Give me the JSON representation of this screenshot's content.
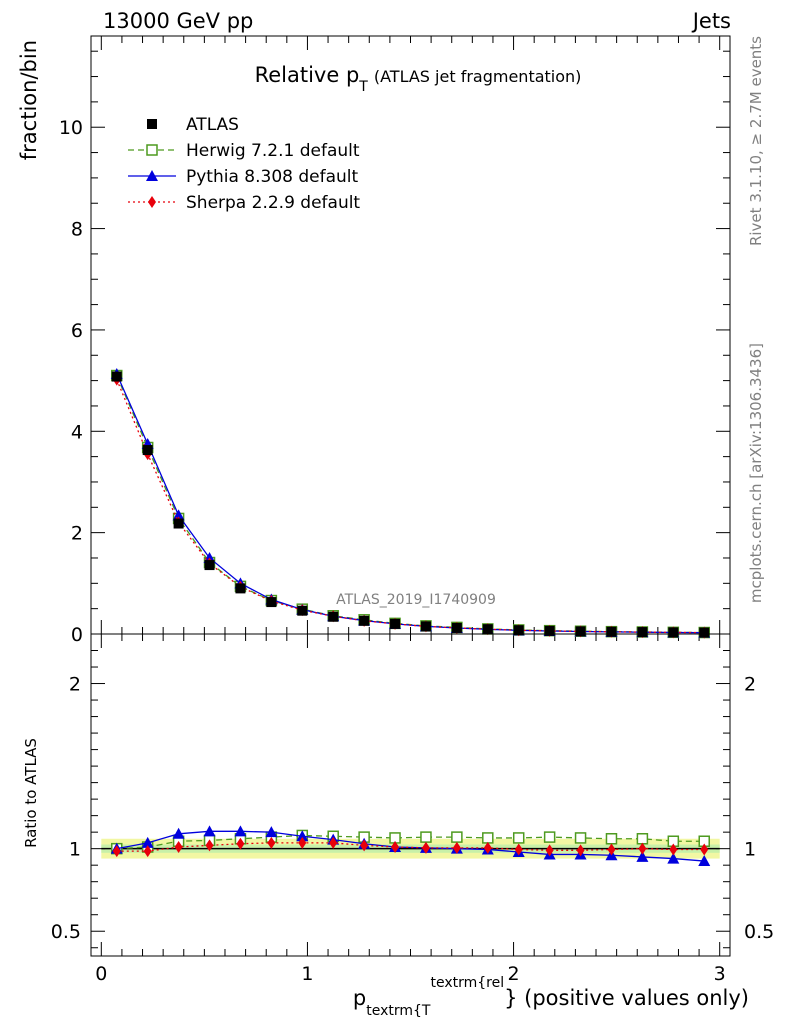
{
  "header": {
    "energy_label": "13000 GeV pp",
    "category_label": "Jets"
  },
  "side_labels": {
    "rivet": "Rivet 3.1.10, ≥ 2.7M events",
    "mcplots": "mcplots.cern.ch [arXiv:1306.3436]"
  },
  "watermark": "ATLAS_2019_I1740909",
  "chart_data": [
    {
      "type": "line",
      "title_main": "Relative p",
      "title_sub": "T",
      "title_note": "(ATLAS jet fragmentation)",
      "ylabel": "fraction/bin",
      "xlim": [
        -0.05,
        3.05
      ],
      "ylim": [
        0,
        11.8
      ],
      "yticks": [
        0,
        2,
        4,
        6,
        8,
        10
      ],
      "yticks_minor_step": 0.5,
      "x": [
        0.075,
        0.225,
        0.375,
        0.525,
        0.675,
        0.825,
        0.975,
        1.125,
        1.275,
        1.425,
        1.575,
        1.725,
        1.875,
        2.025,
        2.175,
        2.325,
        2.475,
        2.625,
        2.775,
        2.925
      ],
      "series": [
        {
          "name": "ATLAS",
          "color": "#000000",
          "marker": "square-filled",
          "values": [
            5.08,
            3.63,
            2.18,
            1.36,
            0.9,
            0.63,
            0.46,
            0.34,
            0.26,
            0.2,
            0.15,
            0.12,
            0.095,
            0.075,
            0.062,
            0.052,
            0.044,
            0.038,
            0.032,
            0.028
          ]
        },
        {
          "name": "Herwig 7.2.1 default",
          "color": "#4d9a1f",
          "marker": "square-open",
          "dash": "6,4",
          "values": [
            5.1,
            3.68,
            2.28,
            1.41,
            0.94,
            0.66,
            0.49,
            0.36,
            0.28,
            0.21,
            0.16,
            0.13,
            0.1,
            0.08,
            0.066,
            0.055,
            0.046,
            0.04,
            0.033,
            0.029
          ]
        },
        {
          "name": "Pythia 8.308 default",
          "color": "#0000dd",
          "marker": "triangle-filled",
          "values": [
            5.13,
            3.75,
            2.34,
            1.5,
            1.0,
            0.68,
            0.48,
            0.35,
            0.265,
            0.2,
            0.15,
            0.118,
            0.092,
            0.072,
            0.059,
            0.05,
            0.042,
            0.036,
            0.03,
            0.026
          ]
        },
        {
          "name": "Sherpa 2.2.9 default",
          "color": "#e8000b",
          "marker": "diamond-filled",
          "dash": "2,3",
          "values": [
            5.02,
            3.55,
            2.2,
            1.39,
            0.93,
            0.65,
            0.47,
            0.35,
            0.26,
            0.2,
            0.15,
            0.12,
            0.096,
            0.074,
            0.062,
            0.051,
            0.044,
            0.038,
            0.032,
            0.028
          ]
        }
      ]
    },
    {
      "type": "line",
      "ylabel": "Ratio to ATLAS",
      "xlabel_main": "p",
      "xlabel_sub": "textrm{T",
      "xlabel_sup": "textrm{rel",
      "xlabel_suffix": "} (positive values only)",
      "xlim": [
        -0.05,
        3.05
      ],
      "xticks": [
        0,
        1,
        2,
        3
      ],
      "xticks_minor_step": 0.1,
      "ylim": [
        0.35,
        2.3
      ],
      "yticks": [
        0.5,
        1,
        2
      ],
      "band_inner": 0.025,
      "band_outer": 0.06,
      "x": [
        0.075,
        0.225,
        0.375,
        0.525,
        0.675,
        0.825,
        0.975,
        1.125,
        1.275,
        1.425,
        1.575,
        1.725,
        1.875,
        2.025,
        2.175,
        2.325,
        2.475,
        2.625,
        2.775,
        2.925
      ],
      "series": [
        {
          "name": "Herwig 7.2.1 default",
          "color": "#4d9a1f",
          "marker": "square-open",
          "dash": "6,4",
          "values": [
            1.0,
            1.01,
            1.045,
            1.05,
            1.06,
            1.07,
            1.08,
            1.075,
            1.07,
            1.065,
            1.07,
            1.07,
            1.065,
            1.065,
            1.07,
            1.065,
            1.06,
            1.06,
            1.045,
            1.045
          ]
        },
        {
          "name": "Pythia 8.308 default",
          "color": "#0000dd",
          "marker": "triangle-filled",
          "values": [
            1.0,
            1.035,
            1.09,
            1.105,
            1.105,
            1.1,
            1.075,
            1.055,
            1.03,
            1.01,
            1.005,
            1.0,
            0.995,
            0.98,
            0.965,
            0.965,
            0.96,
            0.95,
            0.94,
            0.925
          ]
        },
        {
          "name": "Sherpa 2.2.9 default",
          "color": "#e8000b",
          "marker": "diamond-filled",
          "dash": "2,3",
          "values": [
            0.985,
            0.985,
            1.01,
            1.02,
            1.03,
            1.035,
            1.035,
            1.035,
            1.02,
            1.01,
            1.005,
            1.005,
            1.005,
            0.995,
            0.99,
            0.99,
            0.995,
            1.0,
            0.995,
            0.995
          ]
        }
      ]
    }
  ]
}
